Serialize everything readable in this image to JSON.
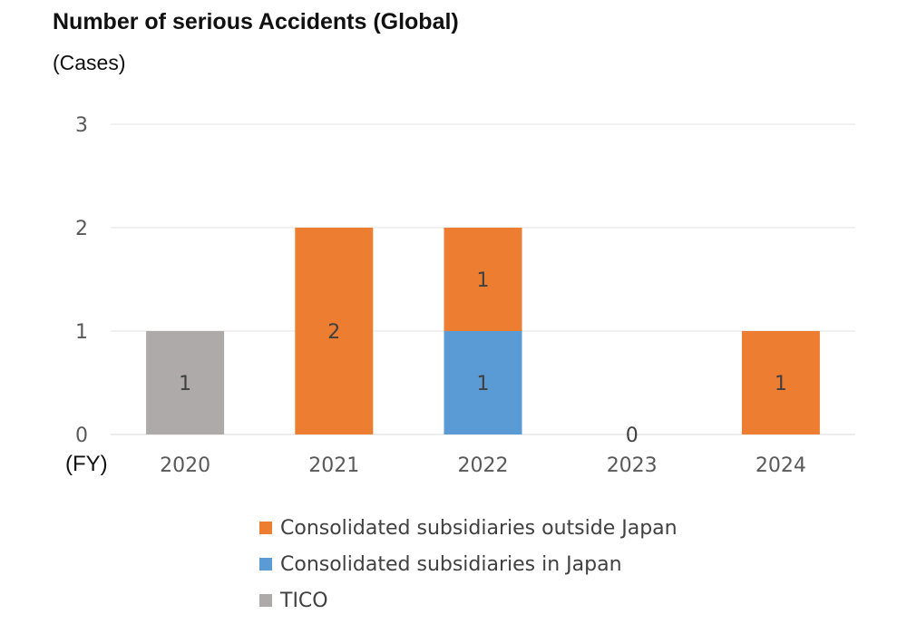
{
  "chart_data": {
    "type": "bar",
    "stacked": true,
    "title": "Number of serious Accidents (Global)",
    "ylabel": "(Cases)",
    "xlabel": "(FY)",
    "categories": [
      "2020",
      "2021",
      "2022",
      "2023",
      "2024"
    ],
    "ylim": [
      0,
      3
    ],
    "yticks": [
      "0",
      "1",
      "2",
      "3"
    ],
    "grid": true,
    "series": [
      {
        "name": "TICO",
        "color": "#ADAAA9",
        "values": [
          1,
          0,
          0,
          0,
          0
        ]
      },
      {
        "name": "Consolidated subsidiaries in Japan",
        "color": "#5B9BD5",
        "values": [
          0,
          0,
          1,
          0,
          0
        ]
      },
      {
        "name": "Consolidated subsidiaries outside Japan",
        "color": "#ED7D31",
        "values": [
          0,
          2,
          1,
          0,
          1
        ]
      }
    ],
    "zero_labels": [
      null,
      null,
      null,
      "0",
      null
    ],
    "legend_order": [
      {
        "name": "Consolidated subsidiaries outside Japan",
        "color": "#ED7D31"
      },
      {
        "name": "Consolidated subsidiaries in Japan",
        "color": "#5B9BD5"
      },
      {
        "name": "TICO",
        "color": "#ADAAA9"
      }
    ],
    "legend_position": "bottom"
  }
}
